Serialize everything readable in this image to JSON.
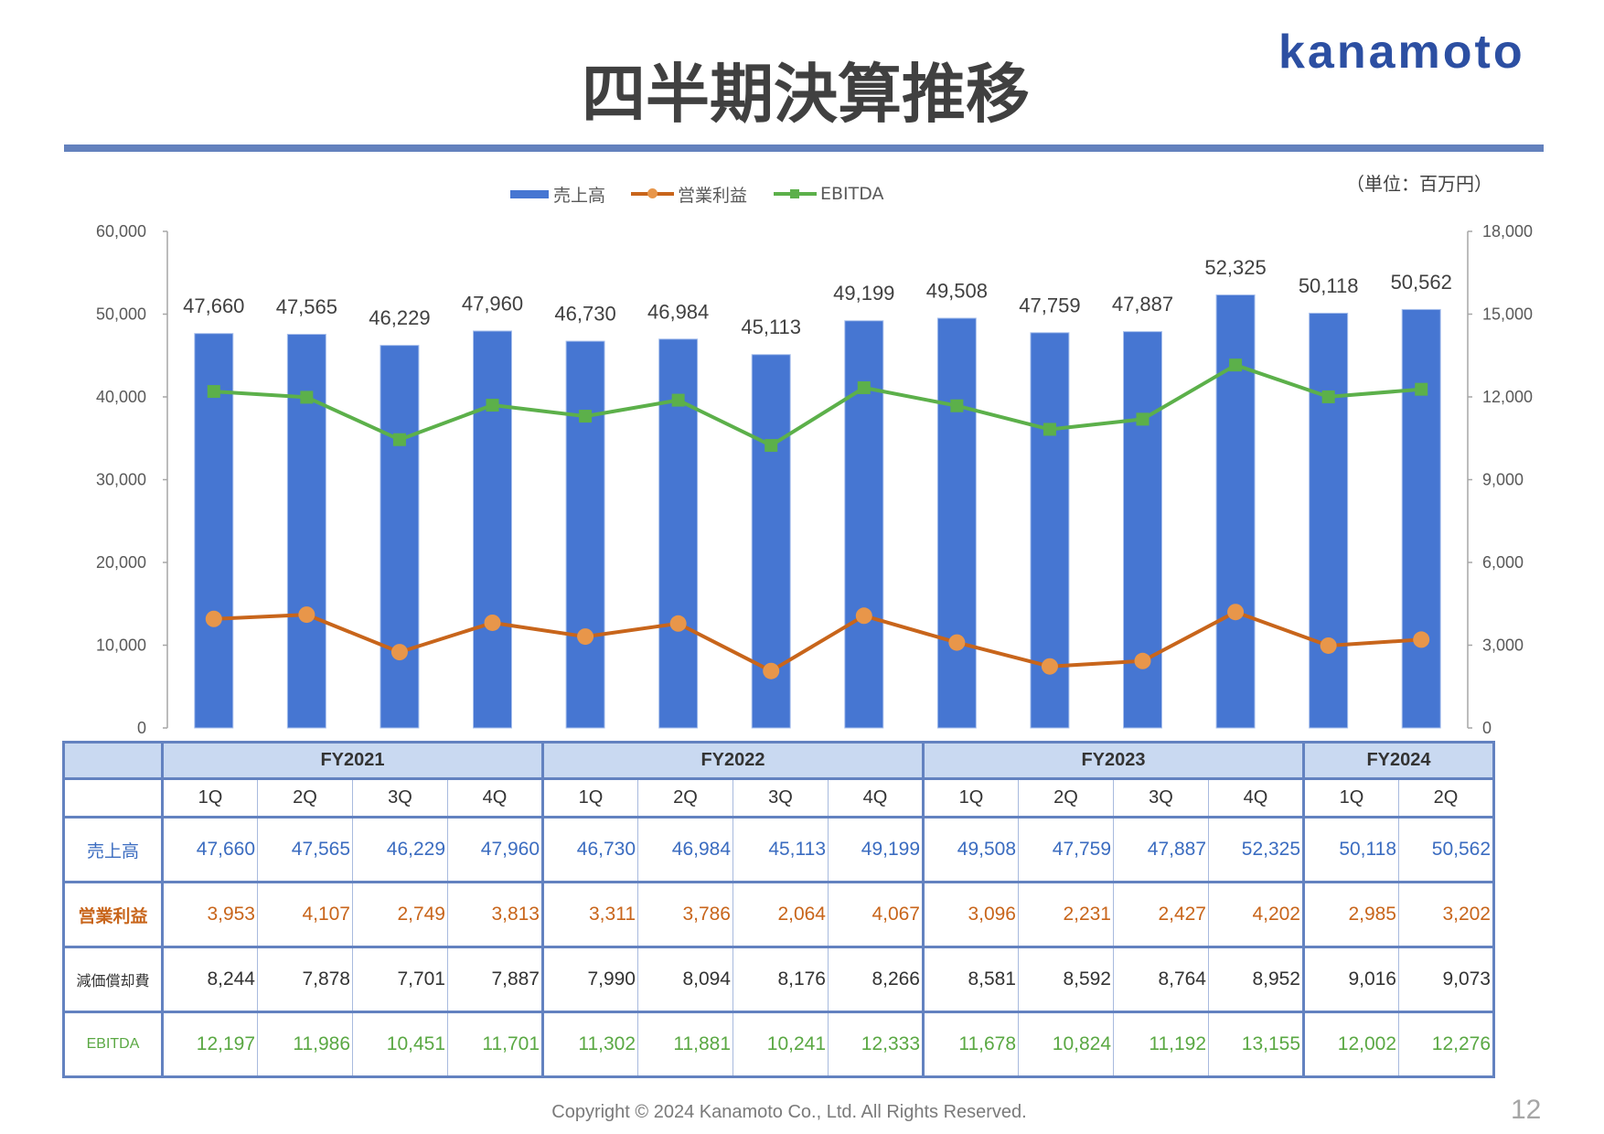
{
  "header": {
    "title": "四半期決算推移",
    "logo_text": "kanamoto",
    "unit_note": "（単位：百万円）"
  },
  "colors": {
    "accent_rule": "#6381bd",
    "logo": "#2c4fa2",
    "table_border": "#6382c0",
    "table_inner_border": "#a8bade",
    "table_header_bg": "#c9d9f1"
  },
  "chart_data": {
    "type": "bar+line",
    "title": "",
    "xlabel": "",
    "ylabel": "",
    "categories": [
      "1Q",
      "2Q",
      "3Q",
      "4Q",
      "1Q",
      "2Q",
      "3Q",
      "4Q",
      "1Q",
      "2Q",
      "3Q",
      "4Q",
      "1Q",
      "2Q"
    ],
    "category_groups": [
      {
        "label": "FY2021",
        "span": 4
      },
      {
        "label": "FY2022",
        "span": 4
      },
      {
        "label": "FY2023",
        "span": 4
      },
      {
        "label": "FY2024",
        "span": 2
      }
    ],
    "series": [
      {
        "name": "売上高",
        "type": "bar",
        "axis": "left",
        "color": "#4676d2",
        "values": [
          47660,
          47565,
          46229,
          47960,
          46730,
          46984,
          45113,
          49199,
          49508,
          47759,
          47887,
          52325,
          50118,
          50562
        ],
        "data_labels": [
          "47,660",
          "47,565",
          "46,229",
          "47,960",
          "46,730",
          "46,984",
          "45,113",
          "49,199",
          "49,508",
          "47,759",
          "47,887",
          "52,325",
          "50,118",
          "50,562"
        ]
      },
      {
        "name": "営業利益",
        "type": "line",
        "axis": "right",
        "color": "#c8651b",
        "marker": "circle",
        "marker_color": "#e8964a",
        "values": [
          3953,
          4107,
          2749,
          3813,
          3311,
          3786,
          2064,
          4067,
          3096,
          2231,
          2427,
          4202,
          2985,
          3202
        ]
      },
      {
        "name": "EBITDA",
        "type": "line",
        "axis": "right",
        "color": "#5cb04a",
        "marker": "square",
        "marker_color": "#5cb04a",
        "values": [
          12197,
          11986,
          10451,
          11701,
          11302,
          11881,
          10241,
          12333,
          11678,
          10824,
          11192,
          13155,
          12002,
          12276
        ]
      }
    ],
    "y_left": {
      "min": 0,
      "max": 60000,
      "ticks": [
        0,
        10000,
        20000,
        30000,
        40000,
        50000,
        60000
      ],
      "tick_labels": [
        "0",
        "10,000",
        "20,000",
        "30,000",
        "40,000",
        "50,000",
        "60,000"
      ]
    },
    "y_right": {
      "min": 0,
      "max": 18000,
      "ticks": [
        0,
        3000,
        6000,
        9000,
        12000,
        15000,
        18000
      ],
      "tick_labels": [
        "0",
        "3,000",
        "6,000",
        "9,000",
        "12,000",
        "15,000",
        "18,000"
      ]
    },
    "grid": false,
    "legend": "top"
  },
  "table": {
    "rows": [
      {
        "label": "売上高",
        "color": "#3b6cc0",
        "values": [
          "47,660",
          "47,565",
          "46,229",
          "47,960",
          "46,730",
          "46,984",
          "45,113",
          "49,199",
          "49,508",
          "47,759",
          "47,887",
          "52,325",
          "50,118",
          "50,562"
        ]
      },
      {
        "label": "営業利益",
        "color": "#c8651b",
        "values": [
          "3,953",
          "4,107",
          "2,749",
          "3,813",
          "3,311",
          "3,786",
          "2,064",
          "4,067",
          "3,096",
          "2,231",
          "2,427",
          "4,202",
          "2,985",
          "3,202"
        ]
      },
      {
        "label": "減価償却費",
        "color": "#333333",
        "values": [
          "8,244",
          "7,878",
          "7,701",
          "7,887",
          "7,990",
          "8,094",
          "8,176",
          "8,266",
          "8,581",
          "8,592",
          "8,764",
          "8,952",
          "9,016",
          "9,073"
        ]
      },
      {
        "label": "EBITDA",
        "color": "#5aa843",
        "values": [
          "12,197",
          "11,986",
          "10,451",
          "11,701",
          "11,302",
          "11,881",
          "10,241",
          "12,333",
          "11,678",
          "10,824",
          "11,192",
          "13,155",
          "12,002",
          "12,276"
        ]
      }
    ]
  },
  "footer": {
    "copyright": "Copyright © 2024 Kanamoto Co., Ltd. All Rights Reserved.",
    "page_number": "12"
  }
}
